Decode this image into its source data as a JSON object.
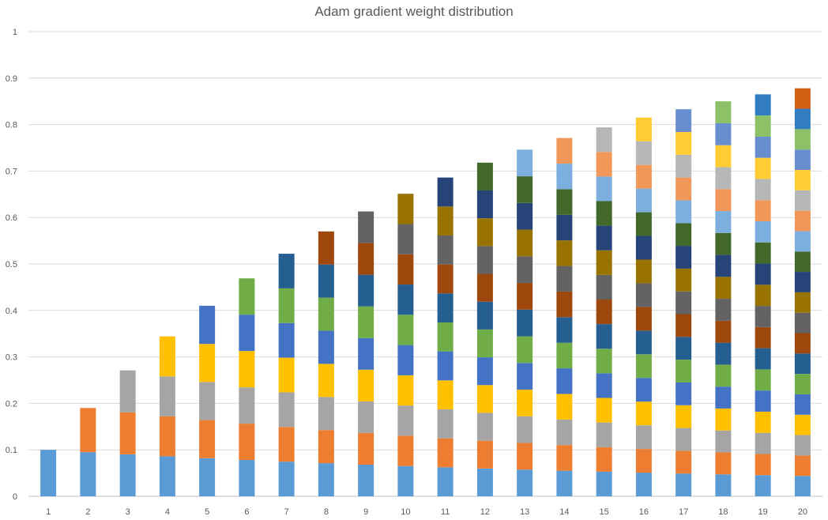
{
  "chart_data": {
    "type": "bar",
    "stacked": true,
    "title": "Adam gradient weight distribution",
    "xlabel": "",
    "ylabel": "",
    "ylim": [
      0,
      1
    ],
    "yticks": [
      "0",
      "0.1",
      "0.2",
      "0.3",
      "0.4",
      "0.5",
      "0.6",
      "0.7",
      "0.8",
      "0.9",
      "1"
    ],
    "categories": [
      "1",
      "2",
      "3",
      "4",
      "5",
      "6",
      "7",
      "8",
      "9",
      "10",
      "11",
      "12",
      "13",
      "14",
      "15",
      "16",
      "17",
      "18",
      "19",
      "20"
    ],
    "totals": [
      0.1,
      0.19,
      0.271,
      0.344,
      0.41,
      0.469,
      0.522,
      0.57,
      0.613,
      0.651,
      0.686,
      0.718,
      0.746,
      0.771,
      0.794,
      0.815,
      0.833,
      0.85,
      0.865,
      0.878
    ],
    "grid": true,
    "legend": "none",
    "colors": [
      "#5b9bd5",
      "#ed7d31",
      "#a5a5a5",
      "#ffc000",
      "#4472c4",
      "#70ad47",
      "#255e91",
      "#9e480e",
      "#636363",
      "#997300",
      "#264478",
      "#43682b",
      "#7cafdd",
      "#f1975a",
      "#b7b7b7",
      "#ffcd33",
      "#698ed0",
      "#8cc168",
      "#327dc2",
      "#d26012"
    ]
  }
}
